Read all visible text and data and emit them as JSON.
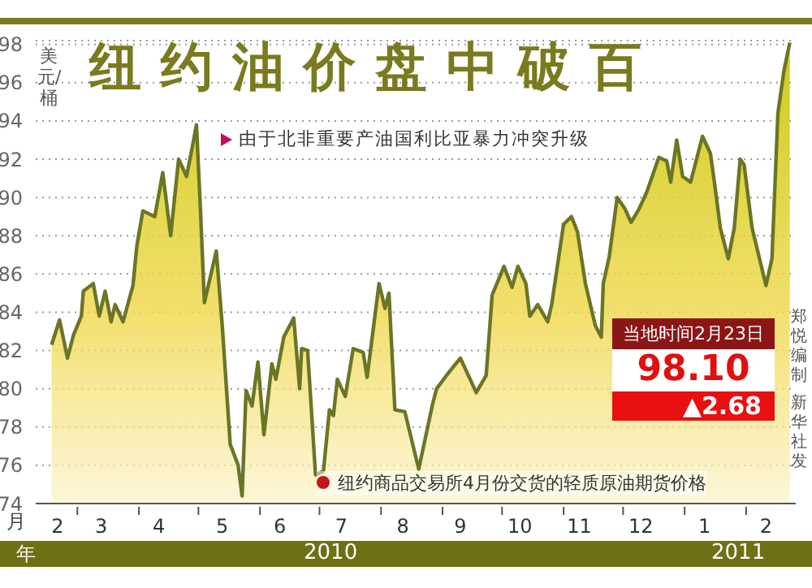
{
  "chart_data": {
    "type": "area",
    "title": "纽约油价盘中破百",
    "ylabel": "美元/桶",
    "x": [
      "2010-02-16",
      "2010-02-20",
      "2010-02-24",
      "2010-02-27",
      "2010-03-03",
      "2010-03-04",
      "2010-03-09",
      "2010-03-12",
      "2010-03-15",
      "2010-03-18",
      "2010-03-20",
      "2010-03-24",
      "2010-03-29",
      "2010-03-31",
      "2010-04-03",
      "2010-04-09",
      "2010-04-13",
      "2010-04-17",
      "2010-04-21",
      "2010-04-25",
      "2010-04-28",
      "2010-04-30",
      "2010-05-02",
      "2010-05-04",
      "2010-05-10",
      "2010-05-13",
      "2010-05-17",
      "2010-05-21",
      "2010-05-23",
      "2010-05-25",
      "2010-05-28",
      "2010-05-31",
      "2010-06-03",
      "2010-06-07",
      "2010-06-09",
      "2010-06-13",
      "2010-06-18",
      "2010-06-21",
      "2010-06-22",
      "2010-06-25",
      "2010-06-29",
      "2010-07-03",
      "2010-07-06",
      "2010-07-08",
      "2010-07-10",
      "2010-07-14",
      "2010-07-18",
      "2010-07-23",
      "2010-07-25",
      "2010-07-31",
      "2010-08-03",
      "2010-08-05",
      "2010-08-08",
      "2010-08-13",
      "2010-08-20",
      "2010-08-27",
      "2010-08-29",
      "2010-09-03",
      "2010-09-10",
      "2010-09-14",
      "2010-09-18",
      "2010-09-23",
      "2010-09-26",
      "2010-10-02",
      "2010-10-06",
      "2010-10-09",
      "2010-10-13",
      "2010-10-15",
      "2010-10-19",
      "2010-10-24",
      "2010-10-26",
      "2010-11-01",
      "2010-11-05",
      "2010-11-08",
      "2010-11-12",
      "2010-11-17",
      "2010-11-20",
      "2010-11-21",
      "2010-11-24",
      "2010-11-28",
      "2010-12-02",
      "2010-12-05",
      "2010-12-09",
      "2010-12-13",
      "2010-12-19",
      "2010-12-23",
      "2010-12-25",
      "2010-12-28",
      "2010-12-31",
      "2011-01-04",
      "2011-01-10",
      "2011-01-14",
      "2011-01-16",
      "2011-01-19",
      "2011-01-23",
      "2011-01-26",
      "2011-01-29",
      "2011-01-31",
      "2011-02-04",
      "2011-02-11",
      "2011-02-14",
      "2011-02-17",
      "2011-02-20",
      "2011-02-23"
    ],
    "series": [
      {
        "color": "#6b7526",
        "values": [
          82.3,
          83.6,
          81.6,
          82.8,
          83.8,
          85.1,
          85.5,
          83.8,
          85.1,
          83.5,
          84.4,
          83.5,
          85.4,
          87.5,
          89.3,
          89.0,
          91.3,
          88.0,
          92.0,
          91.1,
          92.7,
          93.8,
          89.4,
          84.5,
          87.2,
          83.3,
          77.1,
          76.0,
          74.4,
          79.9,
          79.1,
          81.4,
          77.6,
          81.3,
          80.5,
          82.7,
          83.7,
          80.0,
          82.1,
          82.0,
          75.5,
          75.7,
          78.9,
          78.6,
          80.5,
          79.6,
          82.1,
          81.9,
          80.6,
          85.5,
          84.2,
          85.0,
          78.9,
          78.8,
          75.8,
          79.2,
          80.0,
          80.7,
          81.6,
          80.7,
          79.8,
          80.7,
          84.9,
          86.4,
          85.3,
          86.4,
          85.5,
          83.8,
          84.4,
          83.5,
          84.4,
          88.6,
          89.0,
          88.2,
          85.5,
          83.3,
          82.7,
          85.5,
          86.9,
          90.0,
          89.4,
          88.7,
          89.4,
          90.3,
          92.1,
          91.9,
          90.8,
          93.0,
          91.1,
          90.8,
          93.2,
          92.3,
          90.8,
          88.4,
          86.8,
          88.4,
          92.0,
          91.7,
          88.4,
          85.4,
          86.8,
          94.4,
          96.6,
          98.1
        ]
      }
    ],
    "xlim": [
      "2010-02-08",
      "2011-02-26"
    ],
    "xticks": [
      {
        "value": "2010-02-19",
        "label": "2"
      },
      {
        "value": "2010-03-13",
        "label": "3"
      },
      {
        "value": "2010-04-11",
        "label": "4"
      },
      {
        "value": "2010-05-13",
        "label": "5"
      },
      {
        "value": "2010-06-11",
        "label": "6"
      },
      {
        "value": "2010-07-12",
        "label": "7"
      },
      {
        "value": "2010-08-12",
        "label": "8"
      },
      {
        "value": "2010-09-10",
        "label": "9"
      },
      {
        "value": "2010-10-10",
        "label": "10"
      },
      {
        "value": "2010-11-09",
        "label": "11"
      },
      {
        "value": "2010-12-10",
        "label": "12"
      },
      {
        "value": "2011-01-11",
        "label": "1"
      },
      {
        "value": "2011-02-11",
        "label": "2"
      },
      {
        "value": "2010-03-01",
        "label": null
      },
      {
        "value": "2010-04-01",
        "label": null
      },
      {
        "value": "2010-05-01",
        "label": null
      },
      {
        "value": "2010-06-01",
        "label": null
      },
      {
        "value": "2010-07-01",
        "label": null
      },
      {
        "value": "2010-08-01",
        "label": null
      },
      {
        "value": "2010-09-01",
        "label": null
      },
      {
        "value": "2010-10-01",
        "label": null
      },
      {
        "value": "2010-11-01",
        "label": null
      },
      {
        "value": "2010-12-01",
        "label": null
      },
      {
        "value": "2011-01-01",
        "label": null
      },
      {
        "value": "2011-02-01",
        "label": null
      }
    ],
    "ylim": [
      74,
      98.2
    ],
    "yticks": [
      74,
      76,
      78,
      80,
      82,
      84,
      86,
      88,
      90,
      92,
      94,
      96,
      98
    ],
    "grid": "y",
    "marker": "none",
    "annotations": [
      "由于北非重要产油国利比亚暴力冲突升级",
      "纽约商品交易所4月份交货的轻质原油期货价格",
      "当地时间2月23日",
      "98.10",
      "▲2.68",
      "月",
      "年",
      "2010",
      "2011",
      "郑悦编制",
      "新华社发"
    ]
  }
}
